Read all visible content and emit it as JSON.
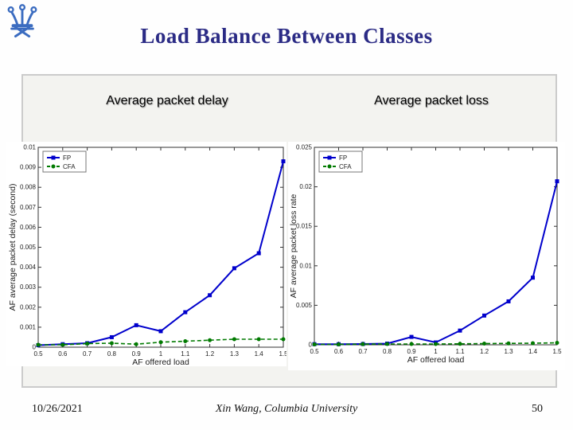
{
  "slide_title": "Load Balance Between Classes",
  "logo": {
    "name": "columbia-crown",
    "color": "#3b6cc0"
  },
  "section_headings": {
    "delay": "Average packet delay",
    "loss": "Average packet loss"
  },
  "footer": {
    "date": "10/26/2021",
    "credit": "Xin Wang, Columbia University",
    "slide_number": "50"
  },
  "colors": {
    "title": "#2b2b85",
    "fp_line": "#0000cc",
    "cfa_line": "#007a00",
    "panel_background": "#f3f3f0",
    "panel_border": "#cbcbcb",
    "axis": "#333333"
  },
  "chart_data": [
    {
      "type": "line",
      "title": "Average packet delay",
      "xlabel": "AF offered load",
      "ylabel": "AF average packet delay (second)",
      "xlim": [
        0.5,
        1.5
      ],
      "ylim": [
        0,
        0.01
      ],
      "x": [
        0.5,
        0.6,
        0.7,
        0.8,
        0.9,
        1.0,
        1.1,
        1.2,
        1.3,
        1.4,
        1.5
      ],
      "xtick_labels": [
        "0.5",
        "0.6",
        "0.7",
        "0.8",
        "0.9",
        "1",
        "1.1",
        "1.2",
        "1.3",
        "1.4",
        "1.5"
      ],
      "yticks": [
        0,
        0.001,
        0.002,
        0.003,
        0.004,
        0.005,
        0.006,
        0.007,
        0.008,
        0.009,
        0.01
      ],
      "ytick_labels": [
        "0",
        "0.001",
        "0.002",
        "0.003",
        "0.004",
        "0.005",
        "0.006",
        "0.007",
        "0.008",
        "0.009",
        "0.01"
      ],
      "legend_position": "top-left",
      "grid": false,
      "series": [
        {
          "name": "FP",
          "color": "#0000cc",
          "dash": "solid",
          "marker": "square",
          "values": [
            0.0001,
            0.00015,
            0.0002,
            0.0005,
            0.0011,
            0.0008,
            0.00175,
            0.0026,
            0.00395,
            0.0047,
            0.0093
          ]
        },
        {
          "name": "CFA",
          "color": "#007a00",
          "dash": "dashed",
          "marker": "circle",
          "values": [
            0.00012,
            0.00012,
            0.00018,
            0.0002,
            0.00015,
            0.00025,
            0.0003,
            0.00035,
            0.0004,
            0.0004,
            0.0004
          ]
        }
      ]
    },
    {
      "type": "line",
      "title": "Average packet loss",
      "xlabel": "AF offered load",
      "ylabel": "AF average packet loss rate",
      "xlim": [
        0.5,
        1.5
      ],
      "ylim": [
        0,
        0.025
      ],
      "x": [
        0.5,
        0.6,
        0.7,
        0.8,
        0.9,
        1.0,
        1.1,
        1.2,
        1.3,
        1.4,
        1.5
      ],
      "xtick_labels": [
        "0.5",
        "0.6",
        "0.7",
        "0.8",
        "0.9",
        "1",
        "1.1",
        "1.2",
        "1.3",
        "1.4",
        "1.5"
      ],
      "yticks": [
        0,
        0.005,
        0.01,
        0.015,
        0.02,
        0.025
      ],
      "ytick_labels": [
        "0",
        "0.005",
        "0.01",
        "0.015",
        "0.02",
        "0.025"
      ],
      "legend_position": "top-left",
      "grid": false,
      "series": [
        {
          "name": "FP",
          "color": "#0000cc",
          "dash": "solid",
          "marker": "square",
          "values": [
            8e-05,
            8e-05,
            0.0001,
            0.00015,
            0.001,
            0.0003,
            0.0018,
            0.0037,
            0.0055,
            0.0085,
            0.0207
          ]
        },
        {
          "name": "CFA",
          "color": "#007a00",
          "dash": "dashed",
          "marker": "circle",
          "values": [
            5e-05,
            5e-05,
            8e-05,
            0.0001,
            0.0001,
            0.0001,
            0.00012,
            0.00015,
            0.00018,
            0.0002,
            0.00025
          ]
        }
      ]
    }
  ]
}
